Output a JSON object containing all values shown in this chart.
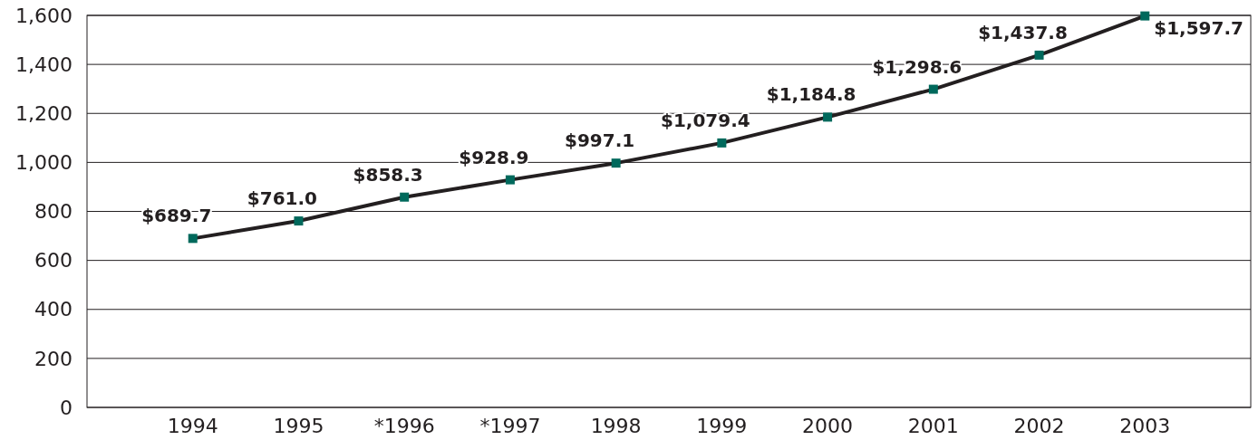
{
  "chart_data": {
    "type": "line",
    "categories": [
      "1994",
      "1995",
      "*1996",
      "*1997",
      "1998",
      "1999",
      "2000",
      "2001",
      "2002",
      "2003"
    ],
    "series": [
      {
        "color": "#231f20",
        "colors": [
          "#00695c",
          "#00695c",
          "#00695c",
          "#00695c",
          "#00695c",
          "#00695c",
          "#00695c",
          "#00695c",
          "#00695c",
          "#00695c"
        ],
        "values": [
          689.7,
          761.0,
          858.3,
          928.9,
          997.1,
          1079.4,
          1184.8,
          1298.6,
          1437.8,
          1597.7
        ],
        "value_labels": [
          "$689.7",
          "$761.0",
          "$858.3",
          "$928.9",
          "$997.1",
          "$1,079.4",
          "$1,184.8",
          "$1,298.6",
          "$1,437.8",
          "$1,597.7"
        ]
      }
    ],
    "ylim": [
      0,
      1600
    ],
    "yticks": [
      0,
      {
        "value": 200,
        "label": "200"
      },
      {
        "value": 400,
        "label": "400"
      },
      {
        "value": 600,
        "label": "600"
      },
      {
        "value": 800,
        "label": "800"
      },
      {
        "value": 1000,
        "label": "1,000"
      },
      {
        "value": 1200,
        "label": "1,200"
      },
      {
        "value": 1400,
        "label": "1,400"
      },
      {
        "value": 1600,
        "label": "1,600"
      }
    ],
    "grid": "y",
    "marker": "square",
    "line_style": "solid"
  }
}
